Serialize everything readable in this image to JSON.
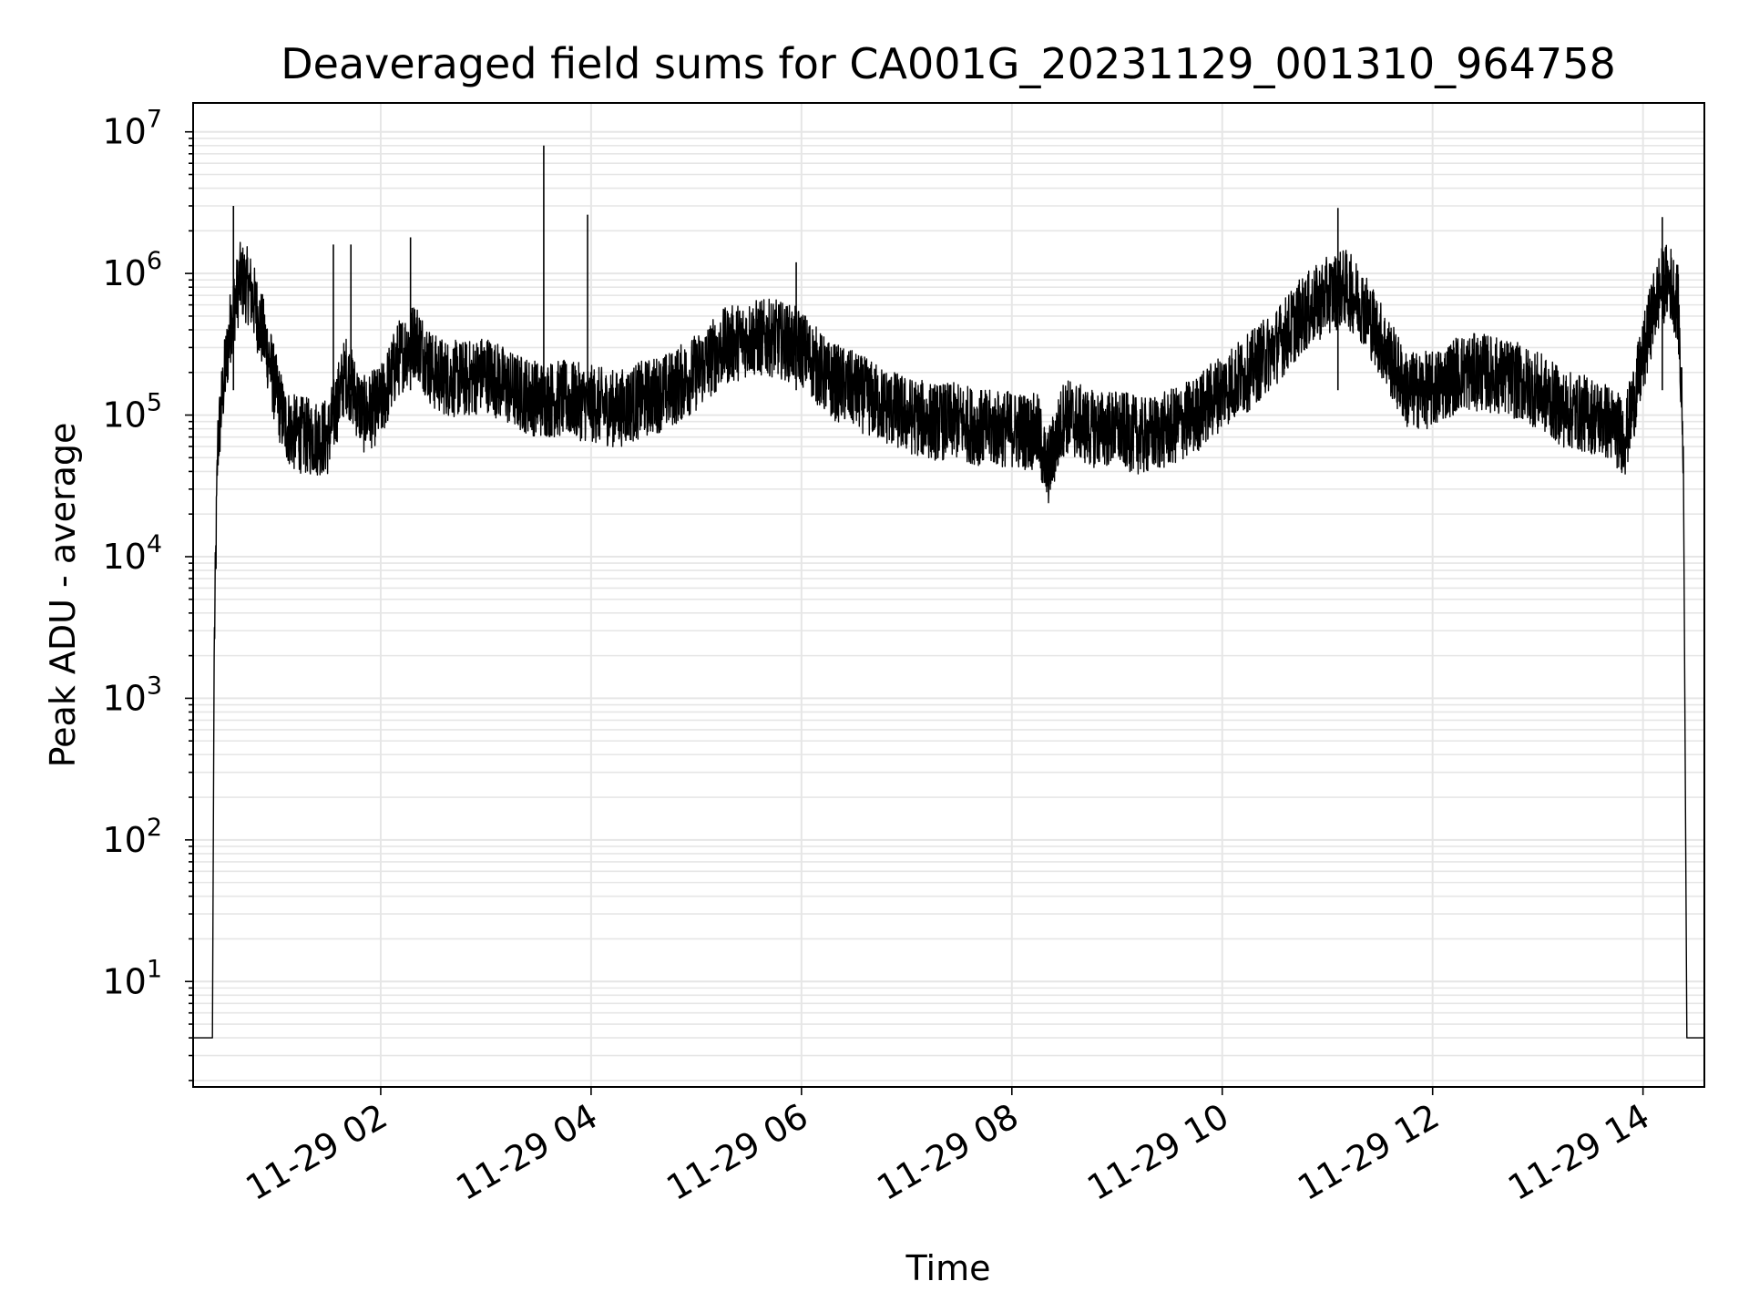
{
  "chart_data": {
    "type": "line",
    "title": "Deaveraged field sums for CA001G_20231129_001310_964758",
    "xlabel": "Time",
    "ylabel": "Peak ADU - average",
    "yscale": "log",
    "ylim": [
      1.8,
      16000000
    ],
    "xlim": [
      "2023-11-29 00:13",
      "2023-11-29 14:35"
    ],
    "grid": true,
    "legend": false,
    "x_tick_labels": [
      "11-29 02",
      "11-29 04",
      "11-29 06",
      "11-29 08",
      "11-29 10",
      "11-29 12",
      "11-29 14"
    ],
    "y_tick_labels": [
      {
        "base": "10",
        "exp": "1"
      },
      {
        "base": "10",
        "exp": "2"
      },
      {
        "base": "10",
        "exp": "3"
      },
      {
        "base": "10",
        "exp": "4"
      },
      {
        "base": "10",
        "exp": "5"
      },
      {
        "base": "10",
        "exp": "6"
      },
      {
        "base": "10",
        "exp": "7"
      }
    ],
    "line_color": "#000000",
    "grid_color": "#e6e6e6",
    "series": [
      {
        "x": [
          "2023-11-29 00:13",
          "2023-11-29 00:24",
          "2023-11-29 00:25",
          "2023-11-29 00:27",
          "2023-11-29 00:30",
          "2023-11-29 00:35",
          "2023-11-29 00:40",
          "2023-11-29 00:45",
          "2023-11-29 00:50",
          "2023-11-29 00:55",
          "2023-11-29 01:00",
          "2023-11-29 01:05",
          "2023-11-29 01:10",
          "2023-11-29 01:20",
          "2023-11-29 01:30",
          "2023-11-29 01:40",
          "2023-11-29 01:50",
          "2023-11-29 02:00",
          "2023-11-29 02:10",
          "2023-11-29 02:20",
          "2023-11-29 02:30",
          "2023-11-29 02:40",
          "2023-11-29 02:50",
          "2023-11-29 03:00",
          "2023-11-29 03:15",
          "2023-11-29 03:30",
          "2023-11-29 03:45",
          "2023-11-29 04:00",
          "2023-11-29 04:15",
          "2023-11-29 04:30",
          "2023-11-29 04:45",
          "2023-11-29 05:00",
          "2023-11-29 05:15",
          "2023-11-29 05:30",
          "2023-11-29 05:45",
          "2023-11-29 06:00",
          "2023-11-29 06:15",
          "2023-11-29 06:30",
          "2023-11-29 06:45",
          "2023-11-29 07:00",
          "2023-11-29 07:15",
          "2023-11-29 07:30",
          "2023-11-29 07:45",
          "2023-11-29 08:00",
          "2023-11-29 08:15",
          "2023-11-29 08:20",
          "2023-11-29 08:30",
          "2023-11-29 08:45",
          "2023-11-29 09:00",
          "2023-11-29 09:15",
          "2023-11-29 09:30",
          "2023-11-29 09:45",
          "2023-11-29 10:00",
          "2023-11-29 10:15",
          "2023-11-29 10:30",
          "2023-11-29 10:45",
          "2023-11-29 11:00",
          "2023-11-29 11:10",
          "2023-11-29 11:20",
          "2023-11-29 11:30",
          "2023-11-29 11:45",
          "2023-11-29 12:00",
          "2023-11-29 12:15",
          "2023-11-29 12:30",
          "2023-11-29 12:45",
          "2023-11-29 13:00",
          "2023-11-29 13:15",
          "2023-11-29 13:30",
          "2023-11-29 13:40",
          "2023-11-29 13:50",
          "2023-11-29 14:00",
          "2023-11-29 14:05",
          "2023-11-29 14:10",
          "2023-11-29 14:15",
          "2023-11-29 14:20",
          "2023-11-29 14:23",
          "2023-11-29 14:25",
          "2023-11-29 14:35"
        ],
        "y": [
          4,
          4,
          2000,
          60000,
          150000,
          500000,
          900000,
          800000,
          500000,
          300000,
          150000,
          90000,
          75000,
          70000,
          70000,
          200000,
          100000,
          120000,
          250000,
          350000,
          200000,
          180000,
          180000,
          200000,
          150000,
          130000,
          130000,
          120000,
          110000,
          130000,
          150000,
          200000,
          300000,
          350000,
          350000,
          300000,
          180000,
          150000,
          120000,
          100000,
          90000,
          90000,
          80000,
          80000,
          75000,
          40000,
          100000,
          80000,
          80000,
          70000,
          80000,
          100000,
          150000,
          200000,
          300000,
          500000,
          700000,
          800000,
          600000,
          350000,
          150000,
          150000,
          200000,
          200000,
          180000,
          150000,
          110000,
          100000,
          90000,
          70000,
          250000,
          500000,
          800000,
          900000,
          600000,
          60000,
          4,
          4
        ]
      }
    ],
    "spikes": [
      {
        "x": "2023-11-29 00:36",
        "y": 3000000
      },
      {
        "x": "2023-11-29 01:43",
        "y": 1600000
      },
      {
        "x": "2023-11-29 01:33",
        "y": 1600000
      },
      {
        "x": "2023-11-29 02:17",
        "y": 1800000
      },
      {
        "x": "2023-11-29 03:33",
        "y": 8000000
      },
      {
        "x": "2023-11-29 03:58",
        "y": 2600000
      },
      {
        "x": "2023-11-29 05:57",
        "y": 1200000
      },
      {
        "x": "2023-11-29 11:06",
        "y": 2900000
      },
      {
        "x": "2023-11-29 14:11",
        "y": 2500000
      }
    ]
  }
}
